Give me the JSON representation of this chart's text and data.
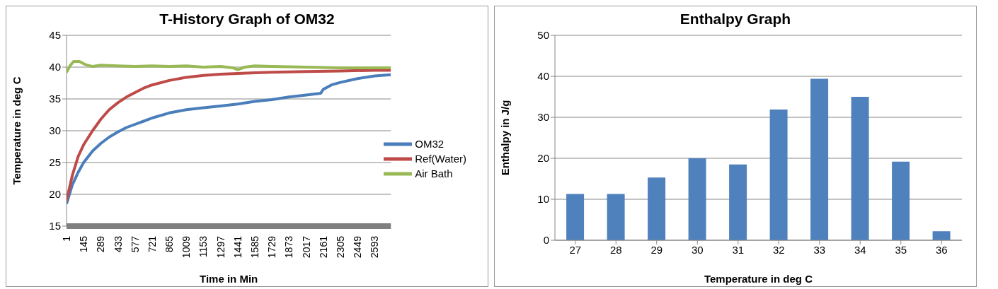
{
  "chart_data": [
    {
      "type": "line",
      "title": "T-History Graph of OM32",
      "xlabel": "Time in Min",
      "ylabel": "Temperature in deg C",
      "xlim": [
        1,
        2730
      ],
      "xticks": [
        1,
        145,
        289,
        433,
        577,
        721,
        865,
        1009,
        1153,
        1297,
        1441,
        1585,
        1729,
        1873,
        2017,
        2161,
        2305,
        2449,
        2593
      ],
      "ylim": [
        15,
        45
      ],
      "yticks": [
        15,
        20,
        25,
        30,
        35,
        40,
        45
      ],
      "grid": "y",
      "legend": "right",
      "series": [
        {
          "name": "OM32",
          "color": "#4a7ebb",
          "x": [
            1,
            50,
            100,
            145,
            220,
            289,
            360,
            433,
            505,
            577,
            650,
            721,
            865,
            1009,
            1153,
            1297,
            1441,
            1585,
            1729,
            1873,
            2017,
            2140,
            2161,
            2230,
            2305,
            2449,
            2593,
            2730
          ],
          "values": [
            18.5,
            21.5,
            23.5,
            25,
            26.8,
            28,
            29,
            29.8,
            30.5,
            31,
            31.5,
            32,
            32.8,
            33.3,
            33.6,
            33.9,
            34.2,
            34.6,
            34.9,
            35.3,
            35.6,
            35.9,
            36.5,
            37.2,
            37.6,
            38.2,
            38.6,
            38.8
          ]
        },
        {
          "name": "Ref(Water)",
          "color": "#be4b48",
          "x": [
            1,
            50,
            100,
            145,
            220,
            289,
            360,
            433,
            505,
            577,
            650,
            721,
            865,
            1009,
            1153,
            1297,
            1441,
            1585,
            1729,
            2017,
            2305,
            2593,
            2730
          ],
          "values": [
            19,
            23,
            26,
            27.8,
            30,
            31.8,
            33.3,
            34.4,
            35.3,
            36,
            36.7,
            37.2,
            37.9,
            38.4,
            38.7,
            38.9,
            39,
            39.1,
            39.2,
            39.3,
            39.4,
            39.5,
            39.5
          ]
        },
        {
          "name": "Air Bath",
          "color": "#98b954",
          "x": [
            1,
            30,
            60,
            110,
            160,
            220,
            289,
            433,
            577,
            721,
            865,
            1009,
            1153,
            1297,
            1400,
            1441,
            1500,
            1585,
            1729,
            2017,
            2305,
            2593,
            2730
          ],
          "values": [
            39.2,
            40.2,
            40.9,
            40.9,
            40.4,
            40.1,
            40.3,
            40.2,
            40.1,
            40.2,
            40.1,
            40.2,
            40,
            40.1,
            39.9,
            39.6,
            40,
            40.2,
            40.1,
            40,
            39.9,
            39.9,
            39.9
          ]
        }
      ]
    },
    {
      "type": "bar",
      "title": "Enthalpy Graph",
      "xlabel": "Temperature in deg C",
      "ylabel": "Enthalpy in J/g",
      "categories": [
        "27",
        "28",
        "29",
        "30",
        "31",
        "32",
        "33",
        "34",
        "35",
        "36"
      ],
      "values": [
        11.3,
        11.3,
        15.3,
        20,
        18.5,
        31.9,
        39.4,
        35,
        19.2,
        2.2
      ],
      "color": "#4f81bd",
      "ylim": [
        0,
        50
      ],
      "yticks": [
        0,
        10,
        20,
        30,
        40,
        50
      ],
      "grid": "y"
    }
  ]
}
